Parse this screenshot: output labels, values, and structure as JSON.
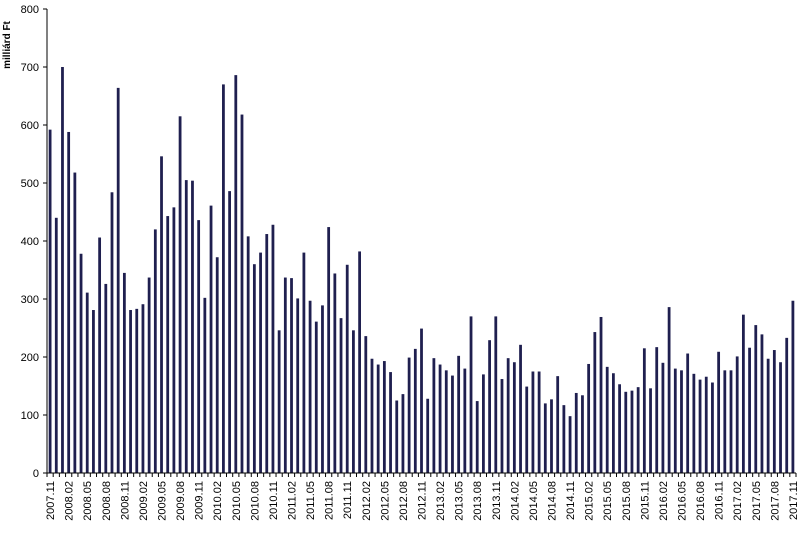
{
  "chart_data": {
    "type": "bar",
    "ylabel": "milliárd Ft",
    "ylim": [
      0,
      800
    ],
    "yticks": [
      0,
      100,
      200,
      300,
      400,
      500,
      600,
      700,
      800
    ],
    "grid": false,
    "legend": "none",
    "colors": {
      "bar": "#1f1f4f",
      "axis": "#000000"
    },
    "categories": [
      "2007.11",
      "2007.12",
      "2008.01",
      "2008.02",
      "2008.03",
      "2008.04",
      "2008.05",
      "2008.06",
      "2008.07",
      "2008.08",
      "2008.09",
      "2008.10",
      "2008.11",
      "2008.12",
      "2009.01",
      "2009.02",
      "2009.03",
      "2009.04",
      "2009.05",
      "2009.06",
      "2009.07",
      "2009.08",
      "2009.09",
      "2009.10",
      "2009.11",
      "2009.12",
      "2010.01",
      "2010.02",
      "2010.03",
      "2010.04",
      "2010.05",
      "2010.06",
      "2010.07",
      "2010.08",
      "2010.09",
      "2010.10",
      "2010.11",
      "2010.12",
      "2011.01",
      "2011.02",
      "2011.03",
      "2011.04",
      "2011.05",
      "2011.06",
      "2011.07",
      "2011.08",
      "2011.09",
      "2011.10",
      "2011.11",
      "2011.12",
      "2012.01",
      "2012.02",
      "2012.03",
      "2012.04",
      "2012.05",
      "2012.06",
      "2012.07",
      "2012.08",
      "2012.09",
      "2012.10",
      "2012.11",
      "2012.12",
      "2013.01",
      "2013.02",
      "2013.03",
      "2013.04",
      "2013.05",
      "2013.06",
      "2013.07",
      "2013.08",
      "2013.09",
      "2013.10",
      "2013.11",
      "2013.12",
      "2014.01",
      "2014.02",
      "2014.03",
      "2014.04",
      "2014.05",
      "2014.06",
      "2014.07",
      "2014.08",
      "2014.09",
      "2014.10",
      "2014.11",
      "2014.12",
      "2015.01",
      "2015.02",
      "2015.03",
      "2015.04",
      "2015.05",
      "2015.06",
      "2015.07",
      "2015.08",
      "2015.09",
      "2015.10",
      "2015.11",
      "2015.12",
      "2016.01",
      "2016.02",
      "2016.03",
      "2016.04",
      "2016.05",
      "2016.06",
      "2016.07",
      "2016.08",
      "2016.09",
      "2016.10",
      "2016.11",
      "2016.12",
      "2017.01",
      "2017.02",
      "2017.03",
      "2017.04",
      "2017.05",
      "2017.06",
      "2017.07",
      "2017.08",
      "2017.09",
      "2017.10",
      "2017.11"
    ],
    "values": [
      592,
      440,
      700,
      588,
      518,
      378,
      311,
      281,
      406,
      326,
      484,
      664,
      345,
      281,
      283,
      291,
      337,
      420,
      546,
      443,
      458,
      615,
      505,
      504,
      436,
      302,
      461,
      372,
      670,
      486,
      686,
      618,
      408,
      360,
      380,
      412,
      428,
      246,
      337,
      336,
      301,
      380,
      297,
      261,
      289,
      424,
      344,
      267,
      359,
      246,
      382,
      236,
      197,
      187,
      193,
      174,
      125,
      136,
      199,
      214,
      249,
      128,
      198,
      187,
      177,
      168,
      202,
      180,
      270,
      124,
      170,
      229,
      270,
      162,
      198,
      191,
      221,
      149,
      175,
      175,
      120,
      127,
      167,
      117,
      98,
      138,
      134,
      188,
      243,
      269,
      183,
      172,
      153,
      140,
      142,
      148,
      215,
      146,
      217,
      190,
      286,
      180,
      177,
      206,
      171,
      161,
      166,
      156,
      209,
      177,
      177,
      201,
      273,
      216,
      255,
      239,
      197,
      212,
      191,
      233,
      297
    ],
    "xtick_labels": [
      "2007.11",
      "2008.02",
      "2008.05",
      "2008.08",
      "2008.11",
      "2009.02",
      "2009.05",
      "2009.08",
      "2009.11",
      "2010.02",
      "2010.05",
      "2010.08",
      "2010.11",
      "2011.02",
      "2011.05",
      "2011.08",
      "2011.11",
      "2012.02",
      "2012.05",
      "2012.08",
      "2012.11",
      "2013.02",
      "2013.05",
      "2013.08",
      "2013.11",
      "2014.02",
      "2014.05",
      "2014.08",
      "2014.11",
      "2015.02",
      "2015.05",
      "2015.08",
      "2015.11",
      "2016.02",
      "2016.05",
      "2016.08",
      "2016.11",
      "2017.02",
      "2017.05",
      "2017.08",
      "2017.11"
    ]
  }
}
